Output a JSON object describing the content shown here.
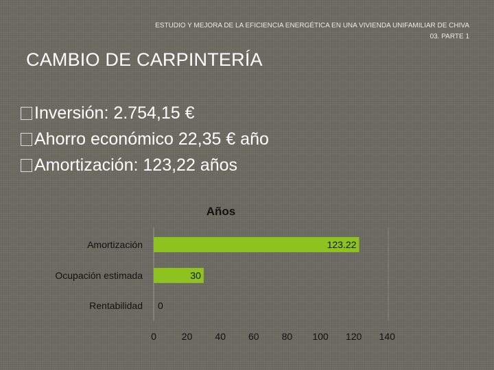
{
  "slide": {
    "header_line1": "ESTUDIO Y MEJORA DE LA EFICIENCIA ENERGÉTICA EN UNA VIVIENDA UNIFAMILIAR DE CHIVA",
    "header_line2": "03. PARTE 1",
    "title": "CAMBIO DE CARPINTERÍA",
    "bullets": [
      "Inversión: 2.754,15 €",
      "Ahorro económico 22,35 € año",
      "Amortización: 123,22 años"
    ]
  },
  "chart_data": {
    "type": "bar",
    "orientation": "horizontal",
    "title": "Años",
    "categories": [
      "Amortización",
      "Ocupación estimada",
      "Rentabilidad"
    ],
    "values": [
      123.22,
      30,
      0
    ],
    "data_labels": [
      "123.22",
      "30",
      "0"
    ],
    "xlim": [
      0,
      140
    ],
    "x_ticks": [
      0,
      20,
      40,
      60,
      80,
      100,
      120,
      140
    ],
    "grid": false,
    "legend": "none",
    "bar_color": "#8dc21f"
  }
}
